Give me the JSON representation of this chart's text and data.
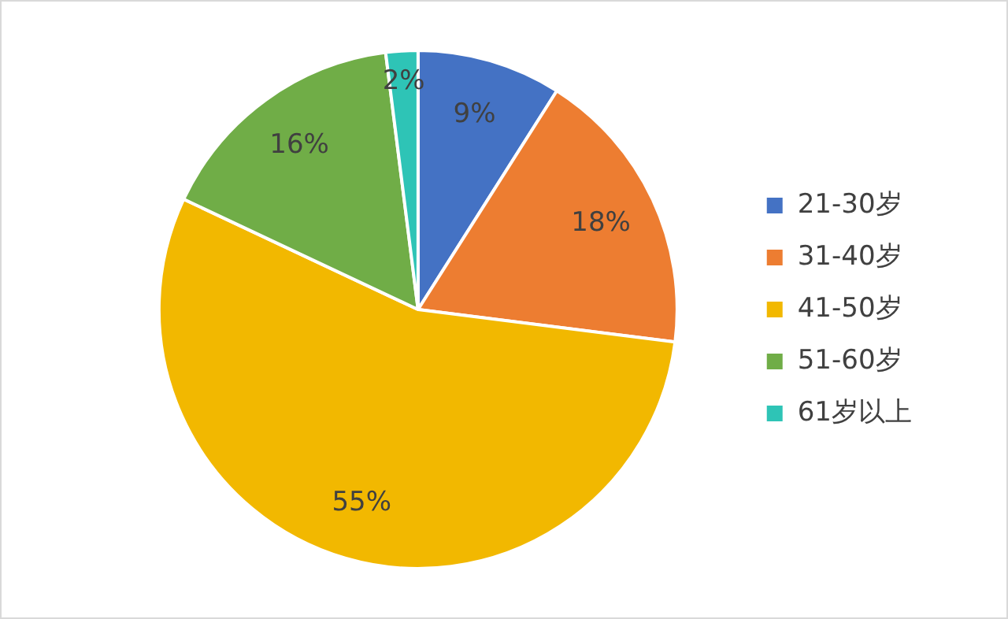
{
  "chart_data": {
    "type": "pie",
    "categories": [
      "21-30岁",
      "31-40岁",
      "41-50岁",
      "51-60岁",
      "61岁以上"
    ],
    "values": [
      9,
      18,
      55,
      16,
      2
    ],
    "value_labels": [
      "9%",
      "18%",
      "55%",
      "16%",
      "2%"
    ],
    "colors": [
      "#4472c4",
      "#ed7d31",
      "#f2b800",
      "#70ad47",
      "#2ec4b6"
    ],
    "legend": "right"
  }
}
